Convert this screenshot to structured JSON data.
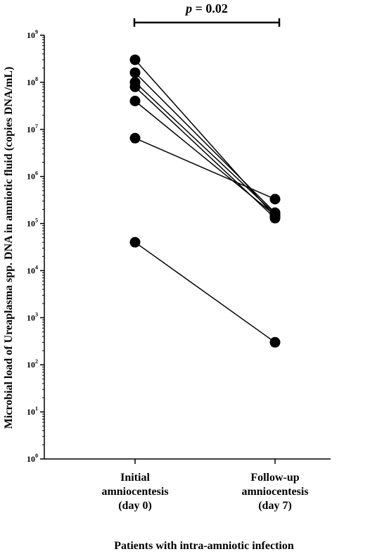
{
  "chart_data": {
    "type": "scatter",
    "xlabel": "Patients with intra-amniotic infection",
    "ylabel": "Microbial load of Ureaplasma spp. DNA in amniotic fluid (copies DNA/mL)",
    "y_scale": "log",
    "ylim": [
      1,
      1000000000
    ],
    "y_ticks": [
      {
        "base": "10",
        "exp": "0"
      },
      {
        "base": "10",
        "exp": "1"
      },
      {
        "base": "10",
        "exp": "2"
      },
      {
        "base": "10",
        "exp": "3"
      },
      {
        "base": "10",
        "exp": "4"
      },
      {
        "base": "10",
        "exp": "5"
      },
      {
        "base": "10",
        "exp": "6"
      },
      {
        "base": "10",
        "exp": "7"
      },
      {
        "base": "10",
        "exp": "8"
      },
      {
        "base": "10",
        "exp": "9"
      }
    ],
    "categories": [
      {
        "lines": [
          "Initial",
          "amniocentesis",
          "(day 0)"
        ]
      },
      {
        "lines": [
          "Follow-up",
          "amniocentesis",
          "(day 7)"
        ]
      }
    ],
    "pairs": [
      [
        300000000,
        140000
      ],
      [
        160000000,
        170000
      ],
      [
        100000000,
        160000
      ],
      [
        80000000,
        130000
      ],
      [
        40000000,
        150000
      ],
      [
        6500000,
        330000
      ],
      [
        40000,
        300
      ]
    ],
    "annotation": {
      "p_symbol": "p",
      "p_rest": " = 0.02"
    },
    "grid": false,
    "legend": "none",
    "marker_color": "#000000"
  }
}
